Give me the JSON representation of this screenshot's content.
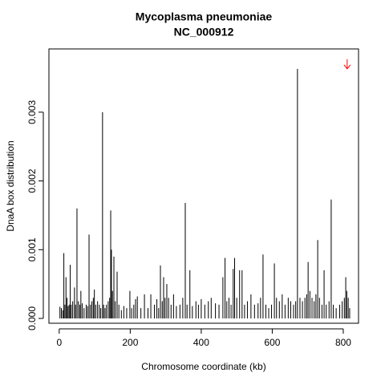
{
  "chart_data": {
    "type": "spike",
    "title": "Mycoplasma pneumoniae",
    "subtitle": "NC_000912",
    "x_label": "Chromosome coordinate (kb)",
    "y_label": "DnaA box distribution",
    "color": "#000000",
    "xlim": [
      -29,
      843
    ],
    "ylim": [
      -7e-05,
      0.00392
    ],
    "xticks": [
      0,
      200,
      400,
      600,
      800
    ],
    "yticks": [
      {
        "value": 0,
        "label": "0.000"
      },
      {
        "value": 0.001,
        "label": "0.001"
      },
      {
        "value": 0.002,
        "label": "0.002"
      },
      {
        "value": 0.003,
        "label": "0.003"
      }
    ],
    "x": [
      2,
      6,
      10,
      13,
      16,
      19,
      22,
      25,
      28,
      31,
      34,
      38,
      43,
      46,
      50,
      54,
      58,
      61,
      65,
      70,
      76,
      80,
      84,
      88,
      92,
      96,
      99,
      103,
      108,
      113,
      117,
      122,
      125,
      129,
      133,
      138,
      142,
      145,
      147,
      150,
      154,
      158,
      163,
      168,
      175,
      182,
      190,
      199,
      204,
      210,
      215,
      220,
      230,
      240,
      250,
      258,
      268,
      275,
      280,
      285,
      290,
      294,
      298,
      303,
      308,
      315,
      322,
      330,
      340,
      348,
      355,
      360,
      368,
      375,
      385,
      392,
      400,
      410,
      420,
      428,
      440,
      450,
      461,
      467,
      472,
      478,
      484,
      490,
      494,
      500,
      508,
      515,
      522,
      530,
      540,
      550,
      560,
      567,
      574,
      582,
      590,
      598,
      606,
      612,
      620,
      628,
      636,
      645,
      652,
      660,
      666,
      671,
      678,
      685,
      692,
      697,
      701,
      706,
      712,
      718,
      723,
      728,
      733,
      740,
      746,
      752,
      760,
      766,
      772,
      780,
      790,
      797,
      803,
      807,
      810,
      814,
      818
    ],
    "values": [
      0.00017,
      0.00015,
      0.00012,
      0.00095,
      0.0002,
      0.0006,
      0.0003,
      0.00018,
      0.0002,
      0.00078,
      0.0002,
      0.00025,
      0.00045,
      0.0002,
      0.0016,
      0.00025,
      0.0002,
      0.0004,
      0.00022,
      0.00015,
      0.0002,
      0.00018,
      0.00122,
      0.0002,
      0.00025,
      0.0003,
      0.00042,
      0.0002,
      0.00025,
      0.0002,
      0.00015,
      0.003,
      0.0002,
      0.00015,
      0.0002,
      0.00025,
      0.0003,
      0.00157,
      0.001,
      0.0004,
      0.0009,
      0.00025,
      0.00068,
      0.0002,
      0.00012,
      0.00018,
      0.00015,
      0.0004,
      0.00015,
      0.0002,
      0.00028,
      0.00032,
      0.00015,
      0.00035,
      0.00015,
      0.00035,
      0.0002,
      0.00028,
      0.00015,
      0.00077,
      0.00025,
      0.0006,
      0.0003,
      0.0005,
      0.0003,
      0.0002,
      0.00035,
      0.00018,
      0.0002,
      0.0003,
      0.00168,
      0.0002,
      0.0007,
      0.00018,
      0.00025,
      0.0002,
      0.00028,
      0.0002,
      0.00025,
      0.0003,
      0.00022,
      0.0002,
      0.0006,
      0.00088,
      0.00025,
      0.0003,
      0.0002,
      0.00072,
      0.00088,
      0.0003,
      0.0007,
      0.0007,
      0.0002,
      0.00025,
      0.00035,
      0.0002,
      0.00022,
      0.0003,
      0.00093,
      0.0002,
      0.00015,
      0.0002,
      0.0008,
      0.0003,
      0.00025,
      0.00035,
      0.0002,
      0.0003,
      0.00025,
      0.0002,
      0.00025,
      0.00363,
      0.0003,
      0.00025,
      0.0003,
      0.00035,
      0.00082,
      0.0004,
      0.0003,
      0.00025,
      0.00035,
      0.00114,
      0.0003,
      0.0002,
      0.0007,
      0.0002,
      0.00025,
      0.00173,
      0.0002,
      0.00015,
      0.0002,
      0.00025,
      0.0003,
      0.0006,
      0.0004,
      0.0003,
      0.00015
    ],
    "arrow": {
      "x": 811,
      "y_start": 0.00377,
      "y_end": 0.00363,
      "color": "#ff0000"
    }
  }
}
